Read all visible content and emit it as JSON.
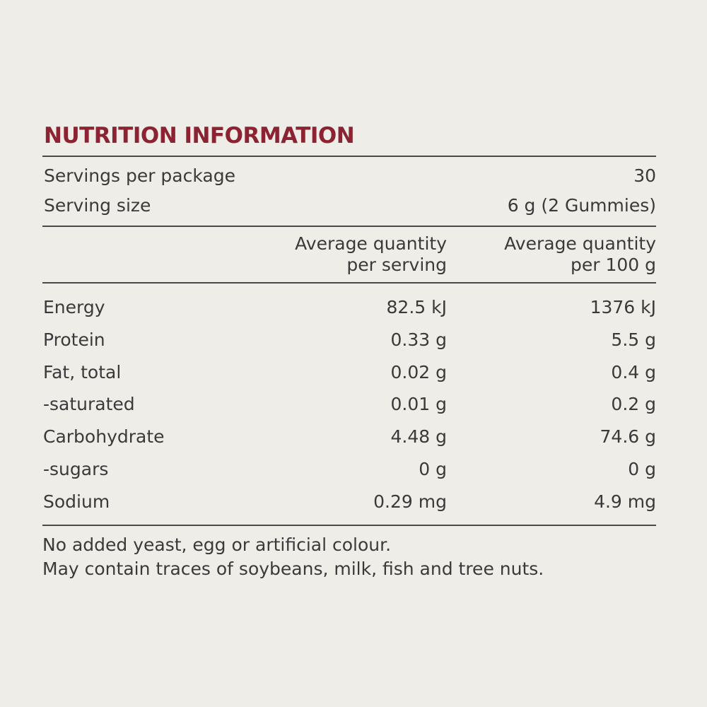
{
  "title": "NUTRITION INFORMATION",
  "servings": {
    "label": "Servings per package",
    "value": "30"
  },
  "serving_size": {
    "label": "Serving size",
    "value": "6 g (2 Gummies)"
  },
  "table": {
    "headers": [
      [
        "Average quantity",
        "per serving"
      ],
      [
        "Average quantity",
        "per 100 g"
      ]
    ],
    "rows": [
      [
        "Energy",
        "82.5 kJ",
        "1376 kJ"
      ],
      [
        "Protein",
        "0.33 g",
        "5.5 g"
      ],
      [
        "Fat, total",
        "0.02 g",
        "0.4 g"
      ],
      [
        "-saturated",
        "0.01 g",
        "0.2 g"
      ],
      [
        "Carbohydrate",
        "4.48 g",
        "74.6 g"
      ],
      [
        "-sugars",
        "0 g",
        "0 g"
      ],
      [
        "Sodium",
        "0.29 mg",
        "4.9 mg"
      ]
    ]
  },
  "notes": [
    "No added yeast, egg or artificial colour.",
    "May contain traces of soybeans, milk, fish and tree nuts."
  ]
}
